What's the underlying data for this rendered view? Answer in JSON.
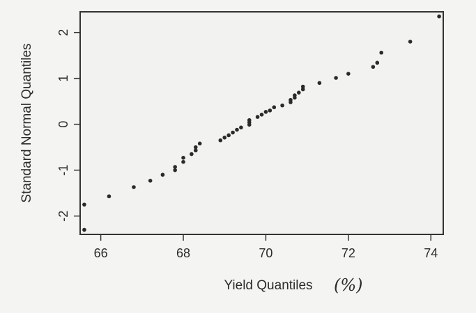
{
  "chart_data": {
    "type": "scatter",
    "title": "",
    "xlabel": "Yield Quantiles",
    "xlabel_unit": "(%)",
    "ylabel": "Standard Normal Quantiles",
    "xlim": [
      65.5,
      74.3
    ],
    "ylim": [
      -2.4,
      2.45
    ],
    "x_ticks": [
      66,
      68,
      70,
      72,
      74
    ],
    "y_ticks": [
      -2,
      -1,
      0,
      1,
      2
    ],
    "grid": false,
    "legend": "none",
    "colors": {
      "background": "#f4f4f2",
      "plot_bg": "#f2f2f0",
      "axis": "#333333",
      "point": "#2a2a2a"
    },
    "series": [
      {
        "points": [
          [
            65.6,
            -2.3
          ],
          [
            65.6,
            -1.75
          ],
          [
            66.2,
            -1.57
          ],
          [
            66.8,
            -1.37
          ],
          [
            67.2,
            -1.23
          ],
          [
            67.5,
            -1.1
          ],
          [
            67.8,
            -1.0
          ],
          [
            67.8,
            -0.93
          ],
          [
            68.0,
            -0.82
          ],
          [
            68.0,
            -0.73
          ],
          [
            68.2,
            -0.65
          ],
          [
            68.3,
            -0.57
          ],
          [
            68.3,
            -0.5
          ],
          [
            68.4,
            -0.42
          ],
          [
            68.9,
            -0.35
          ],
          [
            69.0,
            -0.29
          ],
          [
            69.1,
            -0.24
          ],
          [
            69.2,
            -0.18
          ],
          [
            69.3,
            -0.12
          ],
          [
            69.4,
            -0.07
          ],
          [
            69.6,
            -0.01
          ],
          [
            69.6,
            0.04
          ],
          [
            69.6,
            0.09
          ],
          [
            69.8,
            0.16
          ],
          [
            69.9,
            0.21
          ],
          [
            70.0,
            0.27
          ],
          [
            70.1,
            0.3
          ],
          [
            70.2,
            0.37
          ],
          [
            70.4,
            0.41
          ],
          [
            70.6,
            0.48
          ],
          [
            70.6,
            0.53
          ],
          [
            70.7,
            0.58
          ],
          [
            70.7,
            0.63
          ],
          [
            70.8,
            0.69
          ],
          [
            70.9,
            0.76
          ],
          [
            70.9,
            0.82
          ],
          [
            71.3,
            0.9
          ],
          [
            71.7,
            1.01
          ],
          [
            72.0,
            1.1
          ],
          [
            72.6,
            1.25
          ],
          [
            72.7,
            1.34
          ],
          [
            72.8,
            1.56
          ],
          [
            73.5,
            1.8
          ],
          [
            74.2,
            2.35
          ]
        ]
      }
    ]
  }
}
